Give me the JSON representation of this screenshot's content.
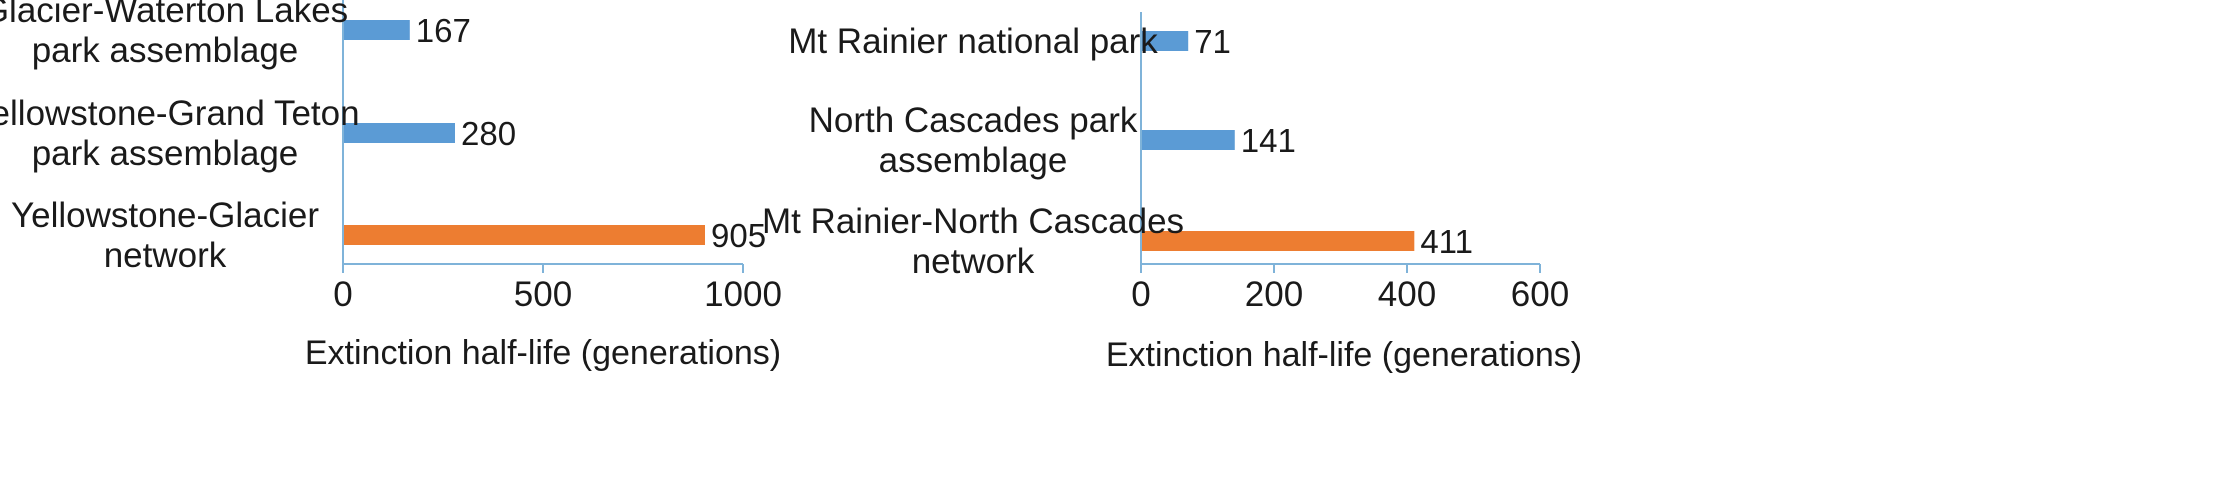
{
  "chart_data": [
    {
      "type": "bar",
      "orientation": "horizontal",
      "categories": [
        [
          "Glacier-Waterton Lakes",
          "park assemblage"
        ],
        [
          "Yellowstone-Grand Teton",
          "park assemblage"
        ],
        [
          "Yellowstone-Glacier",
          "network"
        ]
      ],
      "values": [
        167,
        280,
        905
      ],
      "value_labels": [
        "167",
        "280",
        "905"
      ],
      "bar_colors": [
        "#5b9bd5",
        "#5b9bd5",
        "#ed7d31"
      ],
      "xlim": [
        0,
        1000
      ],
      "xticks": [
        "0",
        "500",
        "1000"
      ],
      "xlabel": "Extinction half-life (generations)",
      "ylabel": "",
      "title": "",
      "grid": false
    },
    {
      "type": "bar",
      "orientation": "horizontal",
      "categories": [
        [
          "Mt Rainier national park"
        ],
        [
          "North Cascades park",
          "assemblage"
        ],
        [
          "Mt Rainier-North Cascades",
          "network"
        ]
      ],
      "values": [
        71,
        141,
        411
      ],
      "value_labels": [
        "71",
        "141",
        "411"
      ],
      "bar_colors": [
        "#5b9bd5",
        "#5b9bd5",
        "#ed7d31"
      ],
      "xlim": [
        0,
        600
      ],
      "xticks": [
        "0",
        "200",
        "400",
        "600"
      ],
      "xlabel": "Extinction half-life (generations)",
      "ylabel": "",
      "title": "",
      "grid": false
    }
  ]
}
